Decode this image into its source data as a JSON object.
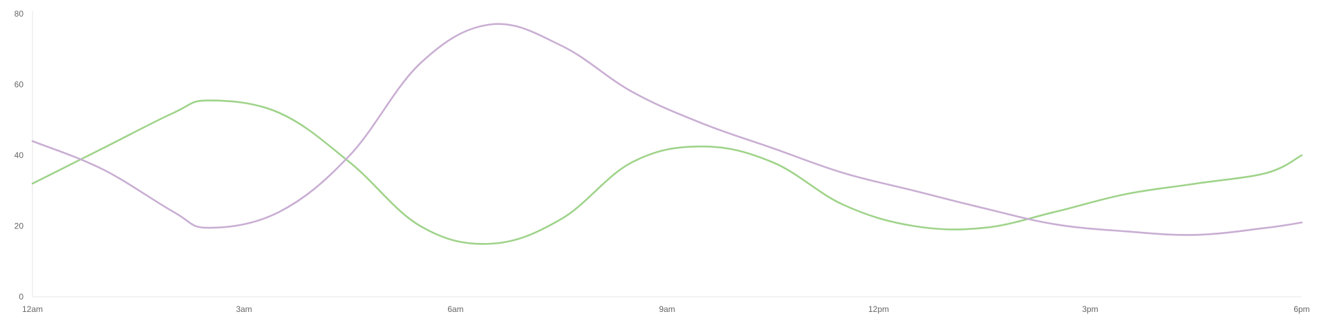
{
  "chart_data": {
    "type": "line",
    "x": [
      "12am",
      "3am",
      "6am",
      "9am",
      "12pm",
      "3pm",
      "6pm"
    ],
    "ylim": [
      0,
      80
    ],
    "yticks": [
      0,
      20,
      40,
      60,
      80
    ],
    "grid": false,
    "series": [
      {
        "color": "#9fd38a",
        "points": [
          [
            0,
            32
          ],
          [
            1,
            42
          ],
          [
            2,
            52
          ],
          [
            2.5,
            55.5
          ],
          [
            3.5,
            52
          ],
          [
            4.5,
            38
          ],
          [
            5.5,
            20
          ],
          [
            6.5,
            15
          ],
          [
            7.5,
            22
          ],
          [
            8.5,
            38
          ],
          [
            9.5,
            42.5
          ],
          [
            10.5,
            38
          ],
          [
            11.5,
            26
          ],
          [
            12.5,
            20
          ],
          [
            13.5,
            19.5
          ],
          [
            14.5,
            24
          ],
          [
            15.5,
            29
          ],
          [
            16.5,
            32
          ],
          [
            17.5,
            35
          ],
          [
            18,
            40
          ]
        ]
      },
      {
        "color": "#c9aed3",
        "points": [
          [
            0,
            44
          ],
          [
            1,
            36
          ],
          [
            2,
            24
          ],
          [
            2.5,
            19.5
          ],
          [
            3.5,
            24
          ],
          [
            4.5,
            40
          ],
          [
            5.5,
            66
          ],
          [
            6.5,
            77
          ],
          [
            7.5,
            71
          ],
          [
            8.5,
            58
          ],
          [
            9.5,
            49
          ],
          [
            10.5,
            42
          ],
          [
            11.5,
            35
          ],
          [
            12.5,
            30
          ],
          [
            13.5,
            25
          ],
          [
            14.5,
            20.5
          ],
          [
            15.5,
            18.5
          ],
          [
            16.5,
            17.5
          ],
          [
            17.5,
            19.5
          ],
          [
            18,
            21
          ]
        ]
      }
    ]
  }
}
